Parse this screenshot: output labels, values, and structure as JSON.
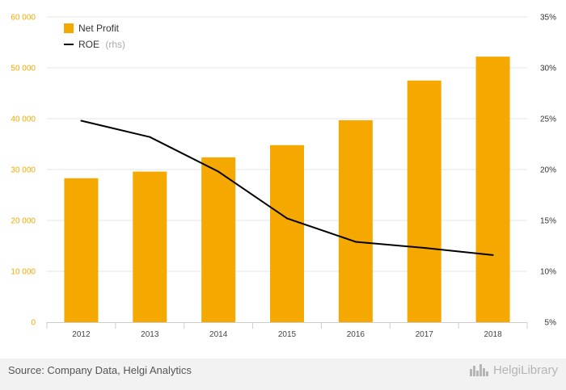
{
  "chart_data": {
    "type": "bar",
    "categories": [
      "2012",
      "2013",
      "2014",
      "2015",
      "2016",
      "2017",
      "2018"
    ],
    "series": [
      {
        "name": "Net Profit",
        "type": "bar",
        "axis": "left",
        "color": "#f5a800",
        "values": [
          28300,
          29600,
          32400,
          34800,
          39700,
          47500,
          52200
        ]
      },
      {
        "name": "ROE",
        "name_note": "(rhs)",
        "type": "line",
        "axis": "right",
        "color": "#000000",
        "values": [
          24.8,
          23.2,
          19.8,
          15.2,
          12.9,
          12.3,
          11.6
        ]
      }
    ],
    "yaxis_left": {
      "min": 0,
      "max": 60000,
      "ticks": [
        0,
        10000,
        20000,
        30000,
        40000,
        50000,
        60000
      ],
      "tick_labels": [
        "0",
        "10 000",
        "20 000",
        "30 000",
        "40 000",
        "50 000",
        "60 000"
      ]
    },
    "yaxis_right": {
      "min": 5,
      "max": 35,
      "ticks": [
        5,
        10,
        15,
        20,
        25,
        30,
        35
      ],
      "tick_labels": [
        "5%",
        "10%",
        "15%",
        "20%",
        "25%",
        "30%",
        "35%"
      ]
    },
    "grid": true,
    "legend_position": "top-left"
  },
  "footer": {
    "source": "Source: Company Data, Helgi Analytics",
    "brand": "HelgiLibrary"
  }
}
